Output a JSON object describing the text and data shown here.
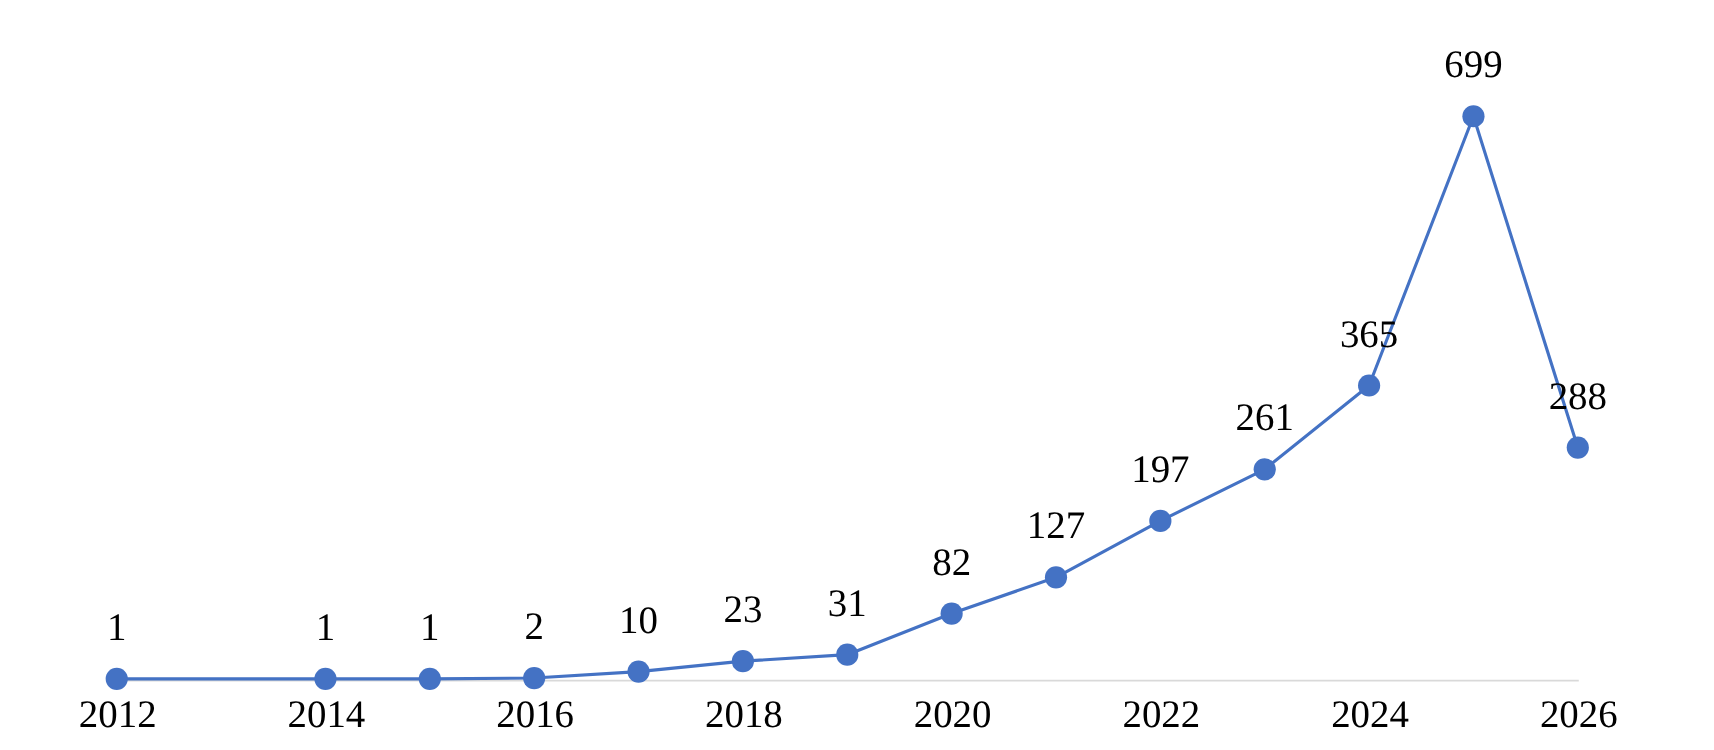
{
  "chart_data": {
    "type": "line",
    "x": [
      2012,
      2014,
      2015,
      2016,
      2017,
      2018,
      2019,
      2020,
      2021,
      2022,
      2023,
      2024,
      2025,
      2026
    ],
    "series": [
      {
        "color": "#4472c4",
        "values": [
          1,
          1,
          1,
          2,
          10,
          23,
          31,
          82,
          127,
          197,
          261,
          365,
          699,
          288
        ]
      }
    ],
    "xlim": [
      2012,
      2026
    ],
    "xticks": [
      2012,
      2014,
      2016,
      2018,
      2020,
      2022,
      2024,
      2026
    ],
    "tick_labels": "x",
    "data_labels": true,
    "marker": "circle",
    "line_style": "solid",
    "grid": false
  }
}
